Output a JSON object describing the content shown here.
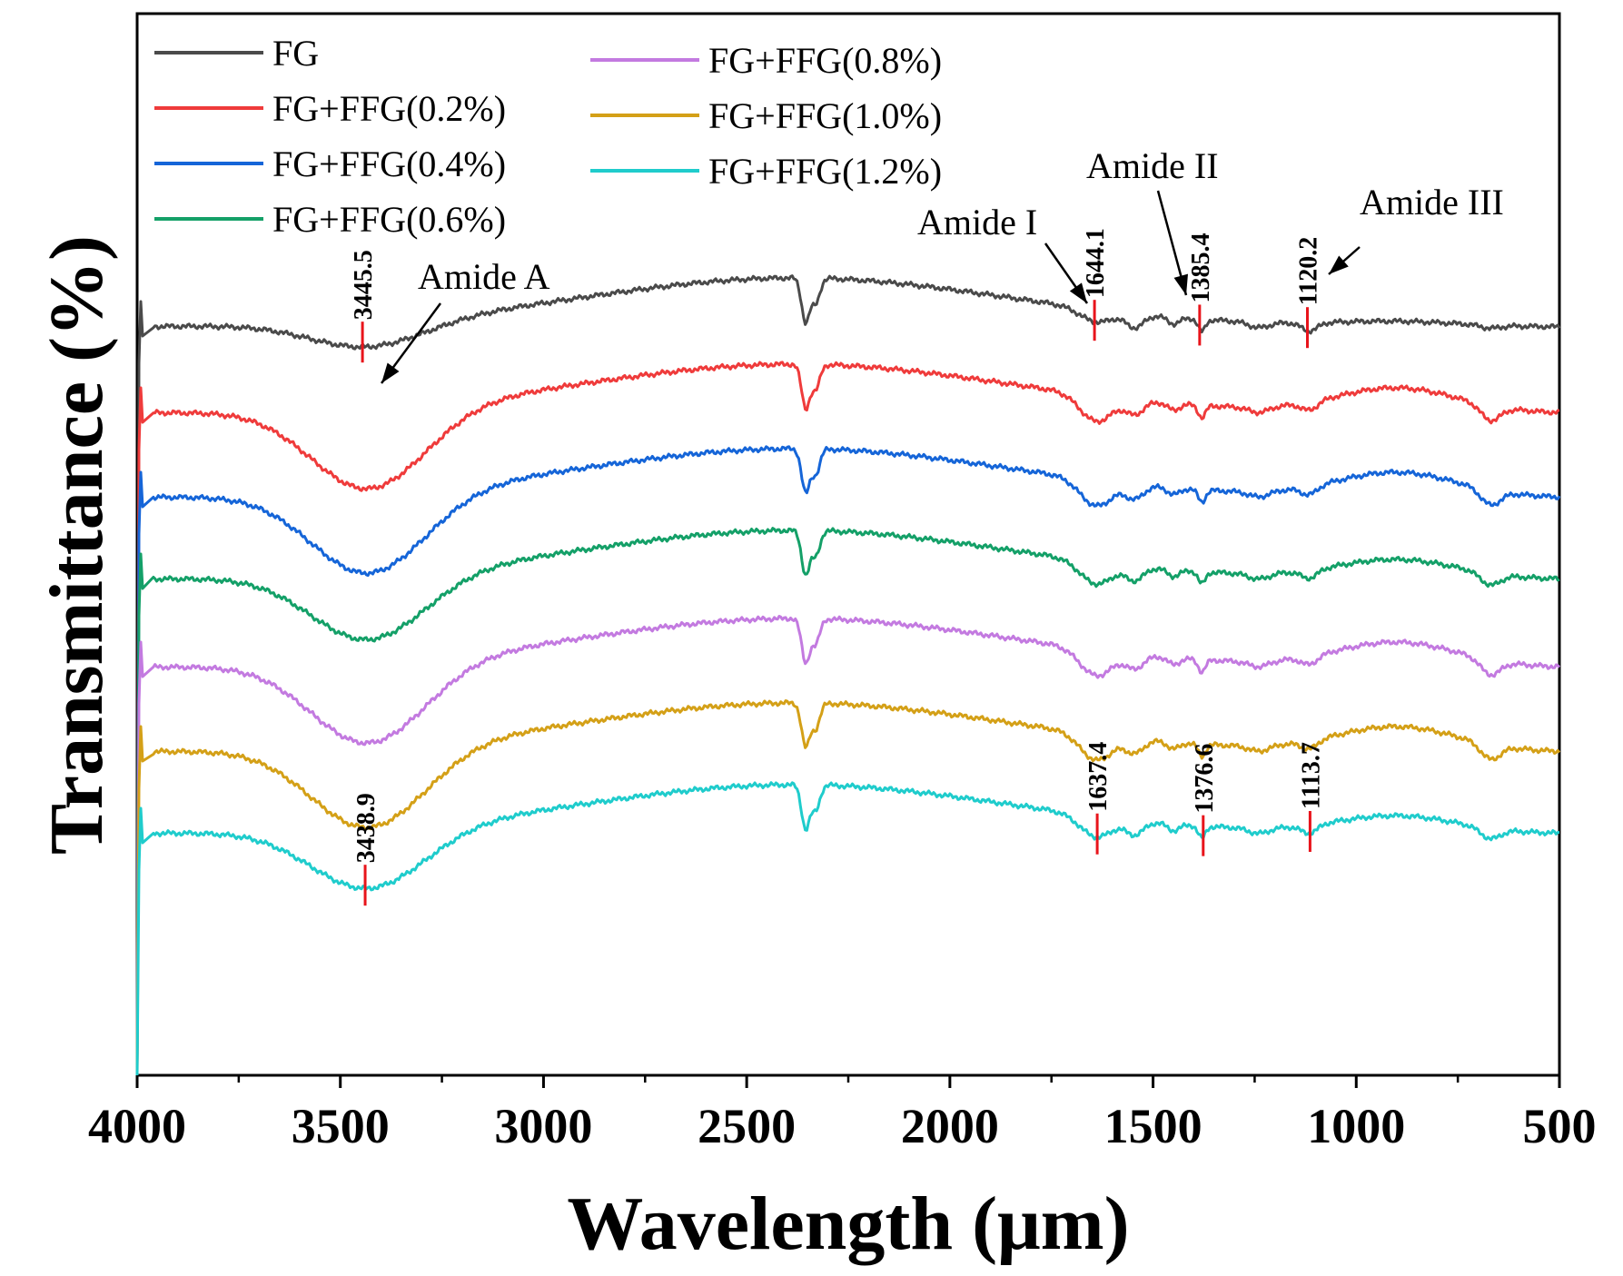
{
  "chart_data": {
    "type": "line",
    "title": "",
    "xlabel": "Wavelength (μm)",
    "ylabel": "Transmittance (%)",
    "xlim": [
      4000,
      500
    ],
    "x_ticks": [
      "4000",
      "3500",
      "3000",
      "2500",
      "2000",
      "1500",
      "1000",
      "500"
    ],
    "grid": false,
    "legend_position": "top-left",
    "series": [
      {
        "name": "FG",
        "color": "#4a4a4a",
        "offset": 0,
        "depth": 0.2
      },
      {
        "name": "FG+FFG(0.2%)",
        "color": "#ef3b3b",
        "offset": 1,
        "depth": 1.0
      },
      {
        "name": "FG+FFG(0.4%)",
        "color": "#1565d8",
        "offset": 2,
        "depth": 1.0
      },
      {
        "name": "FG+FFG(0.6%)",
        "color": "#14a068",
        "offset": 3,
        "depth": 0.78
      },
      {
        "name": "FG+FFG(0.8%)",
        "color": "#c37ae0",
        "offset": 4,
        "depth": 1.0
      },
      {
        "name": "FG+FFG(1.0%)",
        "color": "#d4a017",
        "offset": 5,
        "depth": 1.0
      },
      {
        "name": "FG+FFG(1.2%)",
        "color": "#1fcccc",
        "offset": 6,
        "depth": 0.7
      }
    ],
    "peak_labels": [
      {
        "series": "FG",
        "x": 3445.5,
        "label": "3445.5"
      },
      {
        "series": "FG",
        "x": 1644.1,
        "label": "1644.1"
      },
      {
        "series": "FG",
        "x": 1385.4,
        "label": "1385.4"
      },
      {
        "series": "FG",
        "x": 1120.2,
        "label": "1120.2"
      },
      {
        "series": "FG+FFG(1.2%)",
        "x": 3438.9,
        "label": "3438.9"
      },
      {
        "series": "FG+FFG(1.2%)",
        "x": 1637.4,
        "label": "1637.4"
      },
      {
        "series": "FG+FFG(1.2%)",
        "x": 1376.6,
        "label": "1376.6"
      },
      {
        "series": "FG+FFG(1.2%)",
        "x": 1113.7,
        "label": "1113.7"
      }
    ],
    "annotations": [
      {
        "text": "Amide A",
        "x": 3445.5
      },
      {
        "text": "Amide I",
        "x": 1644.1
      },
      {
        "text": "Amide II",
        "x": 1385.4
      },
      {
        "text": "Amide III",
        "x": 1120.2
      }
    ]
  }
}
